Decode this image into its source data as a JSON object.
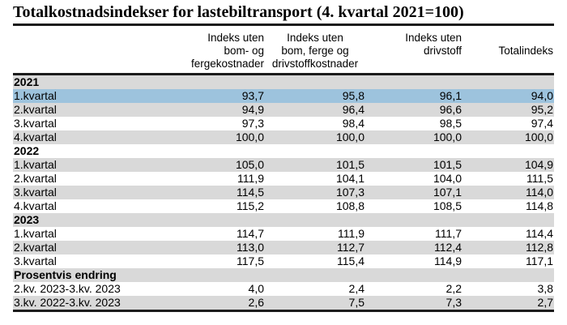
{
  "title": "Totalkostnadsindekser for lastebiltransport (4. kvartal 2021=100)",
  "colors": {
    "highlight_row": "#9dc3dd",
    "stripe_row": "#d9d9d9",
    "rule": "#1c1c1c",
    "text": "#000000"
  },
  "table": {
    "columns": [
      {
        "label": "",
        "align": "left"
      },
      {
        "label": "Indeks uten\nbom- og\nfergekostnader",
        "align": "right"
      },
      {
        "label": "Indeks uten\nbom, ferge og\ndrivstoffkostnader",
        "align": "center"
      },
      {
        "label": "Indeks uten\ndrivstoff",
        "align": "right"
      },
      {
        "label": "Totalindeks",
        "align": "right"
      }
    ],
    "rows": [
      {
        "type": "section",
        "label": "2021",
        "bg": "gray"
      },
      {
        "type": "data",
        "label": "1.kvartal",
        "values": [
          "93,7",
          "95,8",
          "96,1",
          "94,0"
        ],
        "bg": "blue",
        "highlighted": true
      },
      {
        "type": "data",
        "label": "2.kvartal",
        "values": [
          "94,9",
          "96,4",
          "96,6",
          "95,2"
        ],
        "bg": "gray"
      },
      {
        "type": "data",
        "label": "3.kvartal",
        "values": [
          "97,3",
          "98,4",
          "98,5",
          "97,4"
        ],
        "bg": "white"
      },
      {
        "type": "data",
        "label": "4.kvartal",
        "values": [
          "100,0",
          "100,0",
          "100,0",
          "100,0"
        ],
        "bg": "gray"
      },
      {
        "type": "section",
        "label": "2022",
        "bg": "white"
      },
      {
        "type": "data",
        "label": "1.kvartal",
        "values": [
          "105,0",
          "101,5",
          "101,5",
          "104,9"
        ],
        "bg": "gray"
      },
      {
        "type": "data",
        "label": "2.kvartal",
        "values": [
          "111,9",
          "104,1",
          "104,0",
          "111,5"
        ],
        "bg": "white"
      },
      {
        "type": "data",
        "label": "3.kvartal",
        "values": [
          "114,5",
          "107,3",
          "107,1",
          "114,0"
        ],
        "bg": "gray"
      },
      {
        "type": "data",
        "label": "4.kvartal",
        "values": [
          "115,2",
          "108,8",
          "108,5",
          "114,8"
        ],
        "bg": "white"
      },
      {
        "type": "section",
        "label": "2023",
        "bg": "gray"
      },
      {
        "type": "data",
        "label": "1.kvartal",
        "values": [
          "114,7",
          "111,9",
          "111,7",
          "114,4"
        ],
        "bg": "white"
      },
      {
        "type": "data",
        "label": "2.kvartal",
        "values": [
          "113,0",
          "112,7",
          "112,4",
          "112,8"
        ],
        "bg": "gray"
      },
      {
        "type": "data",
        "label": "3.kvartal",
        "values": [
          "117,5",
          "115,4",
          "114,9",
          "117,1"
        ],
        "bg": "white"
      },
      {
        "type": "section",
        "label": "Prosentvis endring",
        "bg": "gray"
      },
      {
        "type": "data",
        "label": "2.kv. 2023-3.kv. 2023",
        "values": [
          "4,0",
          "2,4",
          "2,2",
          "3,8"
        ],
        "bg": "white"
      },
      {
        "type": "data",
        "label": "3.kv. 2022-3.kv. 2023",
        "values": [
          "2,6",
          "7,5",
          "7,3",
          "2,7"
        ],
        "bg": "gray"
      }
    ]
  }
}
